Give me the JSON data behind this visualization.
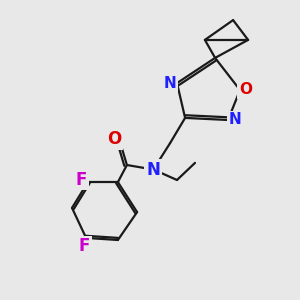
{
  "bg_color": "#e8e8e8",
  "bond_color": "#1a1a1a",
  "N_color": "#2020ff",
  "O_color": "#dd0000",
  "F_color": "#cc00cc",
  "label_fontsize": 12,
  "small_fontsize": 11,
  "figsize": [
    3.0,
    3.0
  ],
  "dpi": 100,
  "xlim": [
    0,
    10
  ],
  "ylim": [
    0,
    10
  ]
}
